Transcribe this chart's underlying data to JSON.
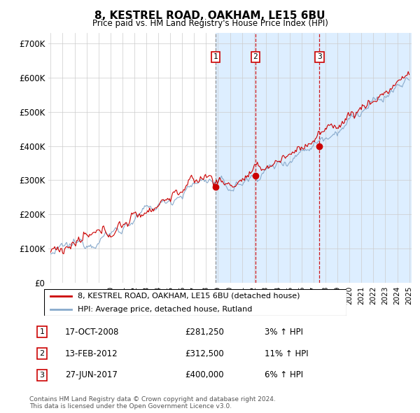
{
  "title": "8, KESTREL ROAD, OAKHAM, LE15 6BU",
  "subtitle": "Price paid vs. HM Land Registry's House Price Index (HPI)",
  "ylim": [
    0,
    730000
  ],
  "yticks": [
    0,
    100000,
    200000,
    300000,
    400000,
    500000,
    600000,
    700000
  ],
  "ytick_labels": [
    "£0",
    "£100K",
    "£200K",
    "£300K",
    "£400K",
    "£500K",
    "£600K",
    "£700K"
  ],
  "price_paid_color": "#cc0000",
  "hpi_color": "#88aacc",
  "hpi_fill_color": "#ddeeff",
  "background_color": "#ffffff",
  "grid_color": "#cccccc",
  "transactions": [
    {
      "num": 1,
      "date": "17-OCT-2008",
      "price": 281250,
      "hpi_pct": "3%",
      "year": 2008.79
    },
    {
      "num": 2,
      "date": "13-FEB-2012",
      "price": 312500,
      "hpi_pct": "11%",
      "year": 2012.12
    },
    {
      "num": 3,
      "date": "27-JUN-2017",
      "price": 400000,
      "hpi_pct": "6%",
      "year": 2017.49
    }
  ],
  "legend_line1": "8, KESTREL ROAD, OAKHAM, LE15 6BU (detached house)",
  "legend_line2": "HPI: Average price, detached house, Rutland",
  "footer": "Contains HM Land Registry data © Crown copyright and database right 2024.\nThis data is licensed under the Open Government Licence v3.0.",
  "x_start_year": 1995,
  "x_end_year": 2025,
  "seed": 12345
}
